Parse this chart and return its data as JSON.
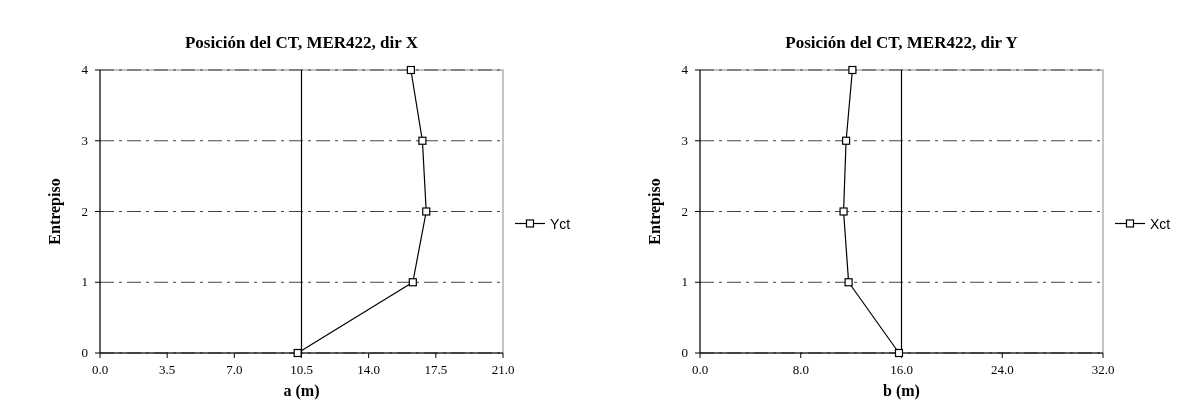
{
  "chart_data": [
    {
      "type": "line",
      "title": "Posición del CT, MER422, dir X",
      "xlabel": "a (m)",
      "ylabel": "Entrepiso",
      "xlim": [
        0,
        21
      ],
      "xticks": [
        {
          "value": 0,
          "label": "0.0"
        },
        {
          "value": 3.5,
          "label": "3.5"
        },
        {
          "value": 7,
          "label": "7.0"
        },
        {
          "value": 10.5,
          "label": "10.5"
        },
        {
          "value": 14,
          "label": "14.0"
        },
        {
          "value": 17.5,
          "label": "17.5"
        },
        {
          "value": 21,
          "label": "21.0"
        }
      ],
      "ylim": [
        0,
        4
      ],
      "yticks": [
        0,
        1,
        2,
        3,
        4
      ],
      "grid": "y",
      "legend": "right",
      "marker": "square",
      "line_style": "solid",
      "ref_lines": [
        {
          "axis": "x",
          "value": 10.5,
          "color": "#000000"
        }
      ],
      "series": [
        {
          "name": "Yct",
          "color": "#000000",
          "x": [
            10.3,
            16.3,
            17.0,
            16.8,
            16.2
          ],
          "values": [
            0,
            1,
            2,
            3,
            4
          ]
        }
      ]
    },
    {
      "type": "line",
      "title": "Posición del CT, MER422, dir Y",
      "xlabel": "b (m)",
      "ylabel": "Entrepiso",
      "xlim": [
        0,
        32
      ],
      "xticks": [
        {
          "value": 0,
          "label": "0.0"
        },
        {
          "value": 8,
          "label": "8.0"
        },
        {
          "value": 16,
          "label": "16.0"
        },
        {
          "value": 24,
          "label": "24.0"
        },
        {
          "value": 32,
          "label": "32.0"
        }
      ],
      "ylim": [
        0,
        4
      ],
      "yticks": [
        0,
        1,
        2,
        3,
        4
      ],
      "grid": "y",
      "legend": "right",
      "marker": "square",
      "line_style": "solid",
      "ref_lines": [
        {
          "axis": "x",
          "value": 16,
          "color": "#000000"
        }
      ],
      "series": [
        {
          "name": "Xct",
          "color": "#000000",
          "x": [
            15.8,
            11.8,
            11.4,
            11.6,
            12.1
          ],
          "values": [
            0,
            1,
            2,
            3,
            4
          ]
        }
      ]
    }
  ]
}
